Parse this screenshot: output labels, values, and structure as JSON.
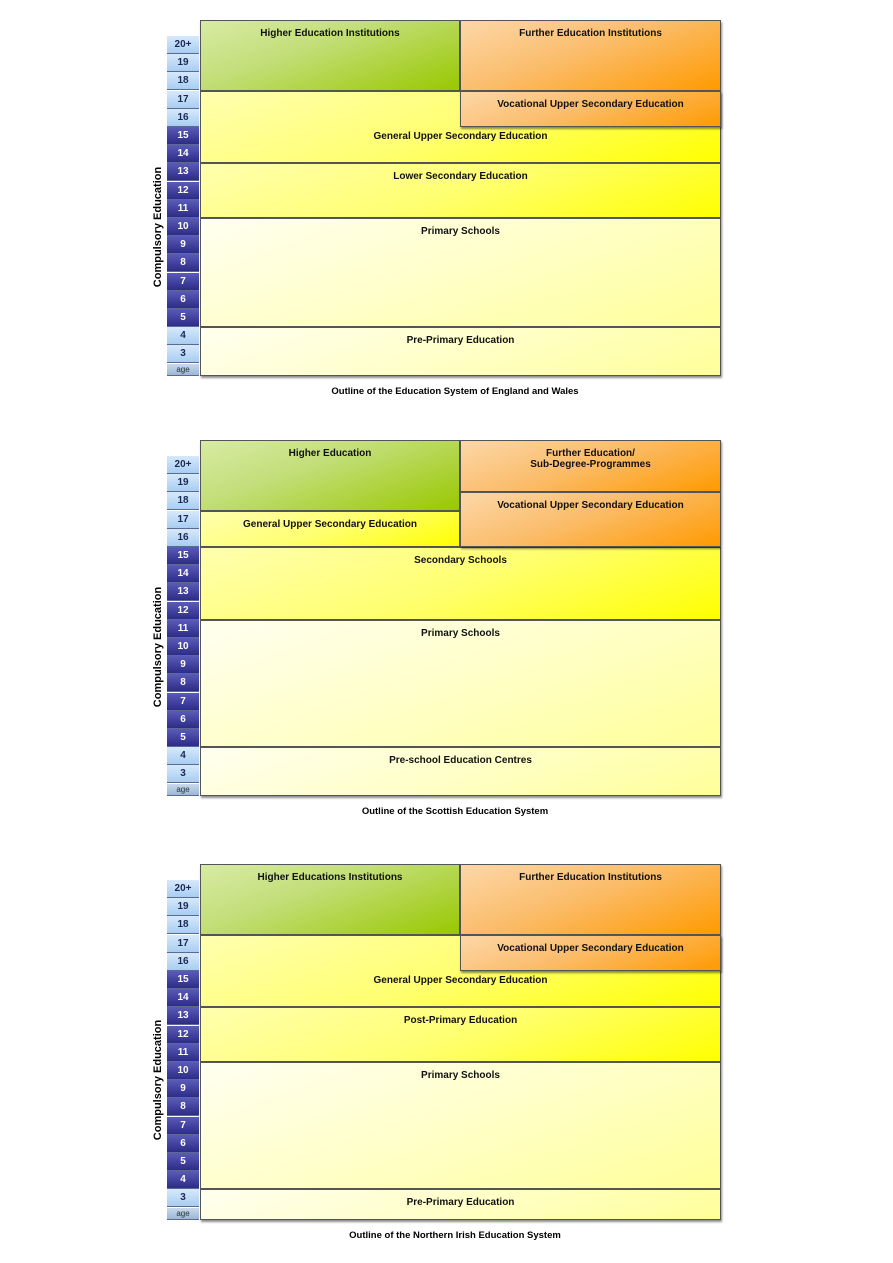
{
  "ages": [
    "20+",
    "19",
    "18",
    "17",
    "16",
    "15",
    "14",
    "13",
    "12",
    "11",
    "10",
    "9",
    "8",
    "7",
    "6",
    "5",
    "4",
    "3",
    "age"
  ],
  "compulsory_label": "Compulsory Education",
  "colors": {
    "green": "#99cc00",
    "orange": "#ff9900",
    "yellow": "#ffff00",
    "pale_yellow": "#ffff99",
    "age_dark": "#333399",
    "age_light": "#a9cdf2"
  },
  "diagrams": [
    {
      "caption": "Outline of the Education System of England and Wales",
      "compulsory_ages": [
        "15",
        "5"
      ],
      "boxes": [
        {
          "label": "Higher Education  Institutions",
          "from": "top",
          "to": "18",
          "col": "left",
          "color": "green"
        },
        {
          "label": "Further Education Institutions",
          "from": "top",
          "to": "18",
          "col": "right",
          "color": "orange"
        },
        {
          "label": "General Upper Secondary Education",
          "from": "17",
          "to": "14",
          "col": "full",
          "color": "yellow",
          "label_age": "15"
        },
        {
          "label": "Vocational Upper Secondary Education",
          "from": "17",
          "to": "16",
          "col": "right",
          "color": "orange"
        },
        {
          "label": "Lower Secondary Education",
          "from": "13",
          "to": "11",
          "col": "full",
          "color": "yellow"
        },
        {
          "label": "Primary Schools",
          "from": "10",
          "to": "5",
          "col": "full",
          "color": "pale"
        },
        {
          "label": "Pre-Primary Education",
          "from": "4",
          "to": "age",
          "col": "full",
          "color": "pale"
        }
      ]
    },
    {
      "caption": "Outline of the Scottish Education System",
      "compulsory_ages": [
        "15",
        "5"
      ],
      "boxes": [
        {
          "label": "Higher Education",
          "from": "top",
          "to": "18",
          "col": "left",
          "color": "green"
        },
        {
          "label": "General Upper Secondary Education",
          "from": "17",
          "to": "16",
          "col": "left",
          "color": "yellow"
        },
        {
          "label": "Further Education/\nSub-Degree-Programmes",
          "from": "top",
          "to": "19",
          "col": "right",
          "color": "orange"
        },
        {
          "label": "Vocational Upper Secondary Education",
          "from": "18",
          "to": "16",
          "col": "right",
          "color": "orange"
        },
        {
          "label": "Secondary Schools",
          "from": "15",
          "to": "12",
          "col": "full",
          "color": "yellow"
        },
        {
          "label": "Primary Schools",
          "from": "11",
          "to": "5",
          "col": "full",
          "color": "pale"
        },
        {
          "label": "Pre-school Education Centres",
          "from": "4",
          "to": "age",
          "col": "full",
          "color": "pale"
        }
      ]
    },
    {
      "caption": "Outline of the Northern Irish Education System",
      "compulsory_ages": [
        "15",
        "4"
      ],
      "boxes": [
        {
          "label": "Higher Educations Institutions",
          "from": "top",
          "to": "18",
          "col": "left",
          "color": "green"
        },
        {
          "label": "Further Education Institutions",
          "from": "top",
          "to": "18",
          "col": "right",
          "color": "orange"
        },
        {
          "label": "General Upper Secondary Education",
          "from": "17",
          "to": "14",
          "col": "full",
          "color": "yellow",
          "label_age": "15"
        },
        {
          "label": "Vocational Upper Secondary Education",
          "from": "17",
          "to": "16",
          "col": "right",
          "color": "orange"
        },
        {
          "label": "Post-Primary Education",
          "from": "13",
          "to": "11",
          "col": "full",
          "color": "yellow"
        },
        {
          "label": "Primary Schools",
          "from": "10",
          "to": "4",
          "col": "full",
          "color": "pale"
        },
        {
          "label": "Pre-Primary Education",
          "from": "3",
          "to": "age",
          "col": "full",
          "color": "pale"
        }
      ]
    }
  ]
}
